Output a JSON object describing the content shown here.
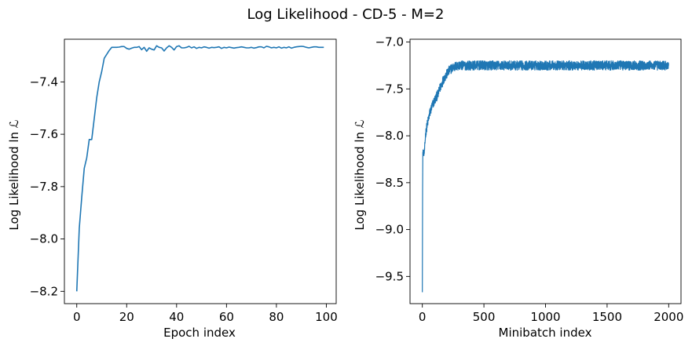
{
  "figure": {
    "title": "Log Likelihood - CD-5 - M=2",
    "line_color": "#1f77b4"
  },
  "chart_data": [
    {
      "type": "line",
      "title": "",
      "xlabel": "Epoch index",
      "ylabel": "Log Likelihood ln ℒ",
      "xlim": [
        -4.95,
        103.95
      ],
      "ylim": [
        -8.247,
        -7.237
      ],
      "xticks": [
        0,
        20,
        40,
        60,
        80,
        100
      ],
      "yticks": [
        -8.2,
        -8.0,
        -7.8,
        -7.6,
        -7.4
      ],
      "xtick_labels": [
        "0",
        "20",
        "40",
        "60",
        "80",
        "100"
      ],
      "ytick_labels": [
        "−8.2",
        "−8.0",
        "−7.8",
        "−7.6",
        "−7.4"
      ],
      "grid": false,
      "series": [
        {
          "x": [
            0,
            1,
            2,
            3,
            4,
            5,
            6,
            7,
            8,
            9,
            10,
            11,
            12,
            13,
            14,
            15,
            16,
            17,
            18,
            19,
            20,
            21,
            22,
            23,
            24,
            25,
            26,
            27,
            28,
            29,
            30,
            31,
            32,
            33,
            34,
            35,
            36,
            37,
            38,
            39,
            40,
            41,
            42,
            43,
            44,
            45,
            46,
            47,
            48,
            49,
            50,
            51,
            52,
            53,
            54,
            55,
            56,
            57,
            58,
            59,
            60,
            61,
            62,
            63,
            64,
            65,
            66,
            67,
            68,
            69,
            70,
            71,
            72,
            73,
            74,
            75,
            76,
            77,
            78,
            79,
            80,
            81,
            82,
            83,
            84,
            85,
            86,
            87,
            88,
            89,
            90,
            91,
            92,
            93,
            94,
            95,
            96,
            97,
            98,
            99
          ],
          "y": [
            -8.2,
            -7.96,
            -7.84,
            -7.73,
            -7.69,
            -7.62,
            -7.62,
            -7.54,
            -7.46,
            -7.4,
            -7.36,
            -7.31,
            -7.295,
            -7.28,
            -7.268,
            -7.268,
            -7.268,
            -7.267,
            -7.265,
            -7.265,
            -7.272,
            -7.275,
            -7.271,
            -7.268,
            -7.268,
            -7.265,
            -7.277,
            -7.268,
            -7.283,
            -7.27,
            -7.275,
            -7.278,
            -7.262,
            -7.268,
            -7.27,
            -7.282,
            -7.27,
            -7.262,
            -7.268,
            -7.278,
            -7.265,
            -7.262,
            -7.27,
            -7.27,
            -7.268,
            -7.264,
            -7.27,
            -7.266,
            -7.272,
            -7.268,
            -7.27,
            -7.266,
            -7.268,
            -7.271,
            -7.268,
            -7.269,
            -7.268,
            -7.266,
            -7.272,
            -7.268,
            -7.27,
            -7.267,
            -7.269,
            -7.271,
            -7.269,
            -7.268,
            -7.266,
            -7.268,
            -7.27,
            -7.27,
            -7.268,
            -7.271,
            -7.269,
            -7.266,
            -7.266,
            -7.27,
            -7.264,
            -7.266,
            -7.27,
            -7.268,
            -7.27,
            -7.266,
            -7.271,
            -7.268,
            -7.27,
            -7.266,
            -7.271,
            -7.268,
            -7.266,
            -7.265,
            -7.264,
            -7.265,
            -7.268,
            -7.27,
            -7.268,
            -7.266,
            -7.266,
            -7.268,
            -7.268,
            -7.268
          ]
        }
      ]
    },
    {
      "type": "line",
      "title": "",
      "xlabel": "Minibatch index",
      "ylabel": "Log Likelihood ln ℒ",
      "xlim": [
        -100,
        2100
      ],
      "ylim": [
        -9.79,
        -6.97
      ],
      "xticks": [
        0,
        500,
        1000,
        1500,
        2000
      ],
      "yticks": [
        -9.5,
        -9.0,
        -8.5,
        -8.0,
        -7.5,
        -7.0
      ],
      "xtick_labels": [
        "0",
        "500",
        "1000",
        "1500",
        "2000"
      ],
      "ytick_labels": [
        "−9.5",
        "−9.0",
        "−8.5",
        "−8.0",
        "−7.5",
        "−7.0"
      ],
      "grid": false,
      "series": [
        {
          "x": [
            0,
            2,
            4,
            6,
            8,
            10,
            15,
            20,
            25,
            30,
            40,
            50,
            60,
            70,
            80,
            90,
            100,
            110,
            120,
            130,
            140,
            150,
            160,
            170,
            180,
            190,
            200,
            210,
            220,
            230,
            240,
            250,
            260,
            270,
            280,
            290,
            300,
            350,
            400,
            450,
            500,
            550,
            600,
            650,
            700,
            750,
            800,
            850,
            900,
            950,
            1000,
            1050,
            1100,
            1150,
            1200,
            1250,
            1300,
            1350,
            1400,
            1450,
            1500,
            1550,
            1600,
            1650,
            1700,
            1750,
            1800,
            1850,
            1900,
            1950,
            2000
          ],
          "y": [
            -9.64,
            -8.6,
            -8.2,
            -8.15,
            -8.2,
            -8.18,
            -8.19,
            -8.12,
            -8.0,
            -7.95,
            -7.88,
            -7.82,
            -7.76,
            -7.72,
            -7.68,
            -7.65,
            -7.62,
            -7.6,
            -7.57,
            -7.55,
            -7.5,
            -7.47,
            -7.44,
            -7.4,
            -7.38,
            -7.36,
            -7.34,
            -7.32,
            -7.3,
            -7.29,
            -7.28,
            -7.27,
            -7.265,
            -7.26,
            -7.255,
            -7.255,
            -7.25,
            -7.25,
            -7.25,
            -7.25,
            -7.25,
            -7.25,
            -7.25,
            -7.25,
            -7.25,
            -7.25,
            -7.25,
            -7.25,
            -7.25,
            -7.25,
            -7.25,
            -7.25,
            -7.25,
            -7.25,
            -7.25,
            -7.25,
            -7.25,
            -7.25,
            -7.25,
            -7.25,
            -7.25,
            -7.25,
            -7.25,
            -7.25,
            -7.25,
            -7.25,
            -7.25,
            -7.25,
            -7.25,
            -7.25,
            -7.25
          ]
        }
      ]
    }
  ]
}
